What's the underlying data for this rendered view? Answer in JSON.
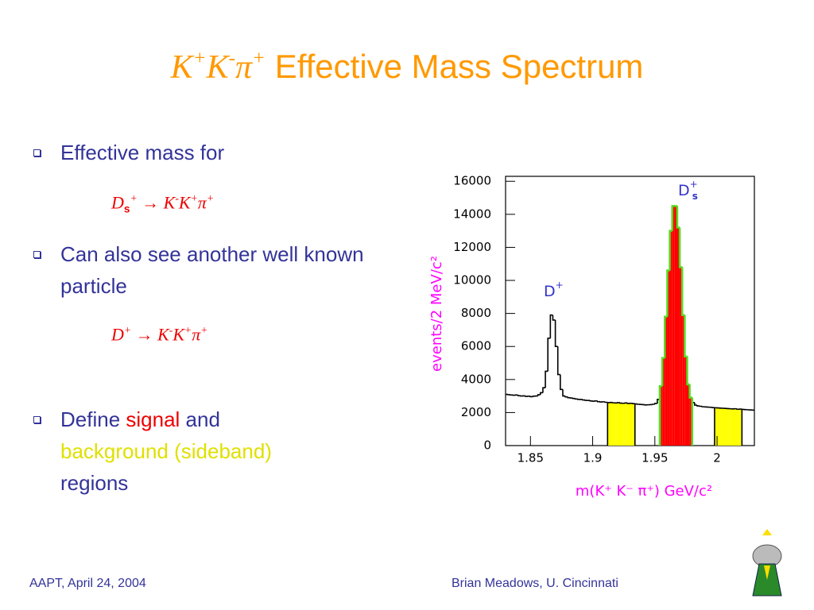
{
  "title": {
    "formula": [
      {
        "t": "K",
        "sup": "+"
      },
      {
        "t": "K",
        "sup": "-"
      },
      {
        "t": "π",
        "sup": "+"
      }
    ],
    "text": " Effective Mass Spectrum"
  },
  "bullets": [
    {
      "segments": [
        "Effective mass for"
      ],
      "formula": [
        {
          "t": "D",
          "sub": "s",
          "sup": "+"
        },
        {
          "t": " → "
        },
        {
          "t": "K",
          "sup": "-"
        },
        {
          "t": "K",
          "sup": "+"
        },
        {
          "t": "π",
          "sup": "+"
        }
      ]
    },
    {
      "segments": [
        "Can also see another well known particle"
      ],
      "formula": [
        {
          "t": "D",
          "sup": "+"
        },
        {
          "t": " → "
        },
        {
          "t": "K",
          "sup": "-"
        },
        {
          "t": "K",
          "sup": "+"
        },
        {
          "t": "π",
          "sup": "+"
        }
      ]
    },
    {
      "segments": [
        "Define ",
        "signal",
        " and",
        "background (sideband)",
        "regions"
      ]
    }
  ],
  "footer": {
    "left": "AAPT, April 24, 2004",
    "right": "Brian Meadows, U. Cincinnati"
  },
  "chart_data": {
    "type": "histogram",
    "xlabel": "m(K⁺ K⁻ π⁺) GeV/c²",
    "ylabel": "events/2 MeV/c²",
    "annotations": [
      {
        "t": "D",
        "sup": "+"
      },
      {
        "t": "D",
        "sup": "+",
        "sub": "s"
      }
    ],
    "bins": [
      1.83,
      1.832,
      1.834,
      1.836,
      1.838,
      1.84,
      1.842,
      1.844,
      1.846,
      1.848,
      1.85,
      1.852,
      1.854,
      1.856,
      1.858,
      1.86,
      1.862,
      1.864,
      1.866,
      1.868,
      1.87,
      1.872,
      1.874,
      1.876,
      1.878,
      1.88,
      1.882,
      1.884,
      1.886,
      1.888,
      1.89,
      1.892,
      1.894,
      1.896,
      1.898,
      1.9,
      1.902,
      1.904,
      1.906,
      1.908,
      1.91,
      1.912,
      1.914,
      1.916,
      1.918,
      1.92,
      1.922,
      1.924,
      1.926,
      1.928,
      1.93,
      1.932,
      1.934,
      1.936,
      1.938,
      1.94,
      1.942,
      1.944,
      1.946,
      1.948,
      1.95,
      1.952,
      1.954,
      1.956,
      1.958,
      1.96,
      1.962,
      1.964,
      1.966,
      1.968,
      1.97,
      1.972,
      1.974,
      1.976,
      1.978,
      1.98,
      1.982,
      1.984,
      1.986,
      1.988,
      1.99,
      1.992,
      1.994,
      1.996,
      1.998,
      2.0,
      2.002,
      2.004,
      2.006,
      2.008,
      2.01,
      2.012,
      2.014,
      2.016,
      2.018,
      2.02,
      2.022,
      2.024,
      2.026,
      2.028,
      2.03
    ],
    "values": [
      3100,
      3080,
      3060,
      3050,
      3060,
      3020,
      3000,
      3010,
      2980,
      2990,
      2960,
      2990,
      3000,
      3080,
      3200,
      3500,
      4500,
      6500,
      7900,
      7600,
      6000,
      4300,
      3400,
      3000,
      2950,
      2900,
      2880,
      2850,
      2820,
      2800,
      2790,
      2760,
      2740,
      2730,
      2700,
      2690,
      2700,
      2660,
      2640,
      2650,
      2620,
      2600,
      2610,
      2590,
      2580,
      2600,
      2570,
      2560,
      2580,
      2550,
      2560,
      2540,
      2520,
      2500,
      2490,
      2480,
      2460,
      2470,
      2480,
      2500,
      2550,
      2800,
      3600,
      5300,
      7800,
      10600,
      13000,
      14500,
      14500,
      13200,
      10800,
      7900,
      5400,
      3700,
      2900,
      2600,
      2450,
      2400,
      2380,
      2350,
      2340,
      2330,
      2320,
      2300,
      2290,
      2280,
      2270,
      2260,
      2250,
      2240,
      2230,
      2220,
      2230,
      2200,
      2210,
      2190,
      2180,
      2170,
      2160,
      2150
    ],
    "regions": [
      {
        "range": [
          1.912,
          1.934
        ],
        "color": "#ffff00"
      },
      {
        "range": [
          1.954,
          1.98
        ],
        "color": "#ff0000",
        "outline": "#55dd22"
      },
      {
        "range": [
          1.998,
          2.02
        ],
        "color": "#ffff00"
      }
    ],
    "xlim": [
      1.83,
      2.03
    ],
    "ylim": [
      0,
      16300
    ],
    "xticks": [
      1.85,
      1.9,
      1.95,
      2
    ],
    "yticks": [
      0,
      2000,
      4000,
      6000,
      8000,
      10000,
      12000,
      14000,
      16000
    ]
  }
}
